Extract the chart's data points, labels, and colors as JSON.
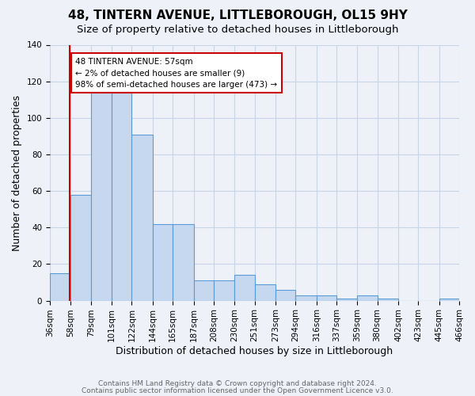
{
  "title": "48, TINTERN AVENUE, LITTLEBOROUGH, OL15 9HY",
  "subtitle": "Size of property relative to detached houses in Littleborough",
  "xlabel": "Distribution of detached houses by size in Littleborough",
  "ylabel": "Number of detached properties",
  "bar_heights": [
    15,
    58,
    115,
    118,
    91,
    42,
    42,
    11,
    11,
    14,
    9,
    6,
    3,
    3,
    1,
    3,
    1,
    0,
    0,
    1
  ],
  "bin_edges": [
    36,
    58,
    79,
    101,
    122,
    144,
    165,
    187,
    208,
    230,
    251,
    273,
    294,
    316,
    337,
    359,
    380,
    402,
    423,
    445,
    466
  ],
  "tick_labels": [
    "36sqm",
    "58sqm",
    "79sqm",
    "101sqm",
    "122sqm",
    "144sqm",
    "165sqm",
    "187sqm",
    "208sqm",
    "230sqm",
    "251sqm",
    "273sqm",
    "294sqm",
    "316sqm",
    "337sqm",
    "359sqm",
    "380sqm",
    "402sqm",
    "423sqm",
    "445sqm",
    "466sqm"
  ],
  "bar_color": "#c5d8f0",
  "bar_edge_color": "#5b9bd5",
  "grid_color": "#c8d4e8",
  "background_color": "#eef2f8",
  "vline_x": 57,
  "vline_color": "#cc0000",
  "annotation_text": "48 TINTERN AVENUE: 57sqm\n← 2% of detached houses are smaller (9)\n98% of semi-detached houses are larger (473) →",
  "annotation_box_facecolor": "#ffffff",
  "annotation_border_color": "#cc0000",
  "ylim": [
    0,
    140
  ],
  "yticks": [
    0,
    20,
    40,
    60,
    80,
    100,
    120,
    140
  ],
  "footer_line1": "Contains HM Land Registry data © Crown copyright and database right 2024.",
  "footer_line2": "Contains public sector information licensed under the Open Government Licence v3.0.",
  "title_fontsize": 11,
  "subtitle_fontsize": 9.5,
  "xlabel_fontsize": 9,
  "ylabel_fontsize": 9,
  "tick_fontsize": 7.5,
  "annotation_fontsize": 7.5,
  "footer_fontsize": 6.5
}
